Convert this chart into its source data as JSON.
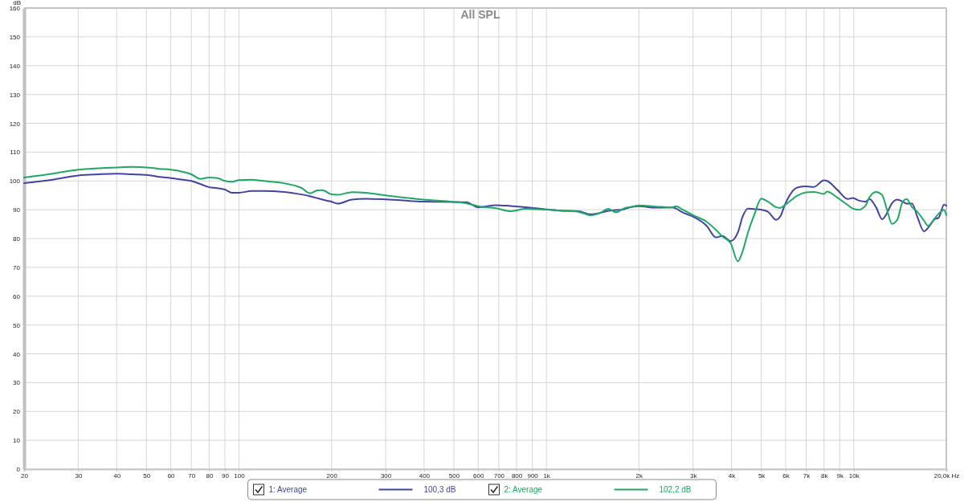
{
  "chart_data": {
    "type": "line",
    "title": "All SPL",
    "ylabel": "dB",
    "series": [
      {
        "name": "1: Average",
        "color": "#4343a6",
        "x": [
          20,
          25,
          30,
          35,
          40,
          45,
          50,
          55,
          60,
          65,
          70,
          75,
          80,
          85,
          90,
          95,
          100,
          110,
          120,
          140,
          160,
          170,
          180,
          187,
          200,
          209,
          233,
          258,
          300,
          400,
          500,
          550,
          600,
          686,
          766,
          855,
          1000,
          1108,
          1272,
          1394,
          1496,
          1587,
          1790,
          1900,
          2000,
          2273,
          2565,
          2641,
          2749,
          3000,
          3323,
          3562,
          3740,
          3977,
          4197,
          4350,
          4527,
          4759,
          5000,
          5260,
          5585,
          5760,
          6000,
          6550,
          7000,
          7415,
          8000,
          8185,
          8843,
          9570,
          9930,
          10370,
          10910,
          11240,
          11810,
          12370,
          12790,
          13320,
          13870,
          14420,
          14860,
          15470,
          16090,
          16920,
          17440,
          18330,
          18880,
          19660,
          20000
        ],
        "values": [
          99.2,
          100.5,
          101.9,
          102.3,
          102.5,
          102.3,
          102.1,
          101.4,
          101.0,
          100.5,
          100.0,
          98.9,
          97.8,
          97.5,
          97.0,
          95.9,
          95.9,
          96.5,
          96.5,
          96.2,
          95.3,
          94.7,
          94.0,
          93.5,
          92.8,
          92.1,
          93.5,
          93.8,
          93.6,
          92.8,
          92.7,
          92.6,
          90.8,
          91.6,
          91.3,
          90.9,
          90.1,
          89.7,
          89.5,
          88.4,
          88.9,
          89.6,
          90.2,
          91.0,
          91.2,
          90.7,
          90.8,
          90.4,
          89.3,
          87.6,
          84.4,
          80.4,
          80.9,
          79.1,
          82.1,
          87.6,
          90.4,
          90.2,
          90.0,
          89.3,
          86.5,
          87.6,
          92.3,
          97.7,
          98.1,
          97.9,
          100.2,
          100.0,
          96.9,
          93.7,
          94.1,
          93.2,
          92.8,
          93.7,
          90.9,
          86.7,
          88.6,
          92.3,
          93.5,
          92.8,
          92.1,
          92.1,
          87.6,
          82.5,
          83.7,
          86.7,
          87.2,
          91.8,
          91.4
        ]
      },
      {
        "name": "2: Average",
        "color": "#1fa865",
        "x": [
          20,
          25,
          30,
          35,
          40,
          45,
          50,
          55,
          60,
          65,
          70,
          75,
          80,
          85,
          90,
          95,
          100,
          110,
          120,
          140,
          160,
          170,
          180,
          187,
          200,
          209,
          233,
          258,
          300,
          400,
          500,
          550,
          600,
          686,
          766,
          855,
          1000,
          1108,
          1272,
          1394,
          1496,
          1587,
          1685,
          1790,
          1900,
          2000,
          2273,
          2565,
          2641,
          2749,
          3000,
          3323,
          3562,
          3740,
          3977,
          4197,
          4350,
          4527,
          4759,
          5000,
          5260,
          5585,
          5760,
          6000,
          6550,
          7000,
          7415,
          8000,
          8185,
          8843,
          9570,
          9930,
          10370,
          10910,
          11240,
          11810,
          12370,
          12790,
          13320,
          13870,
          14420,
          14860,
          15470,
          16090,
          16920,
          17440,
          18330,
          18880,
          19660,
          20000
        ],
        "values": [
          101.2,
          102.6,
          103.9,
          104.4,
          104.7,
          104.9,
          104.7,
          104.2,
          103.9,
          103.3,
          102.3,
          100.7,
          101.2,
          101.0,
          100.0,
          99.7,
          100.3,
          100.4,
          100.0,
          99.2,
          97.5,
          95.7,
          96.7,
          96.8,
          95.3,
          95.2,
          96.1,
          95.9,
          95.0,
          93.5,
          92.7,
          92.2,
          91.2,
          90.5,
          89.5,
          90.3,
          90.0,
          89.7,
          89.3,
          88.1,
          88.9,
          90.3,
          89.1,
          90.5,
          91.0,
          91.5,
          91.1,
          90.8,
          91.2,
          90.3,
          88.1,
          85.8,
          83.0,
          80.7,
          78.4,
          72.1,
          75.6,
          82.1,
          88.6,
          93.9,
          92.8,
          90.9,
          90.6,
          91.8,
          94.9,
          96.0,
          96.2,
          95.5,
          96.3,
          94.2,
          91.6,
          90.4,
          90.0,
          91.4,
          94.3,
          96.2,
          95.1,
          90.4,
          85.1,
          86.7,
          92.8,
          93.7,
          90.9,
          89.3,
          86.2,
          84.4,
          87.0,
          88.6,
          90.0,
          88.1
        ]
      }
    ],
    "xlim": [
      20,
      20000
    ],
    "xticks": [
      20,
      30,
      40,
      50,
      60,
      70,
      80,
      90,
      100,
      200,
      300,
      400,
      500,
      600,
      700,
      800,
      900,
      {
        "value": 1000,
        "label": "1k"
      },
      {
        "value": 2000,
        "label": "2k"
      },
      {
        "value": 3000,
        "label": "3k"
      },
      {
        "value": 4000,
        "label": "4k"
      },
      {
        "value": 5000,
        "label": "5k"
      },
      {
        "value": 6000,
        "label": "6k"
      },
      {
        "value": 7000,
        "label": "7k"
      },
      {
        "value": 8000,
        "label": "8k"
      },
      {
        "value": 9000,
        "label": "9k"
      },
      {
        "value": 10000,
        "label": "10k"
      },
      {
        "value": 20000,
        "label": "20,0k Hz"
      }
    ],
    "ylim": [
      0,
      160
    ],
    "yticks": [
      0,
      10,
      20,
      30,
      40,
      50,
      60,
      70,
      80,
      90,
      100,
      110,
      120,
      130,
      140,
      150,
      160
    ],
    "log": "x",
    "grid": true,
    "legend": "bottom",
    "line_style": "solid",
    "annotations": [
      "100,3 dB",
      "102,2 dB"
    ]
  }
}
